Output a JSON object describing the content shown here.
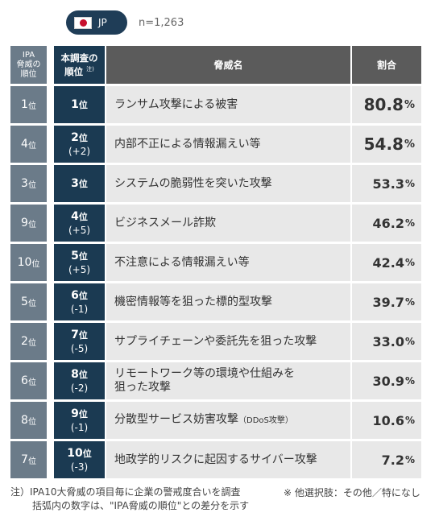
{
  "header": {
    "country_code": "JP",
    "sample_size": "n=1,263"
  },
  "table": {
    "headers": {
      "ipa_rank": [
        "IPA",
        "脅威の",
        "順位"
      ],
      "survey_rank": [
        "本調査の",
        "順位"
      ],
      "survey_rank_note": "注)",
      "threat_name": "脅威名",
      "ratio": "割合"
    },
    "rows": [
      {
        "ipa_rank": "1",
        "survey_rank": "1",
        "diff": "",
        "name": "ランサム攻撃による被害",
        "name_line2": "",
        "name_suffix": "",
        "pct": "80.8",
        "big": true
      },
      {
        "ipa_rank": "4",
        "survey_rank": "2",
        "diff": "(+2)",
        "name": "内部不正による情報漏えい等",
        "name_line2": "",
        "name_suffix": "",
        "pct": "54.8",
        "big": true
      },
      {
        "ipa_rank": "3",
        "survey_rank": "3",
        "diff": "",
        "name": "システムの脆弱性を突いた攻撃",
        "name_line2": "",
        "name_suffix": "",
        "pct": "53.3",
        "big": false
      },
      {
        "ipa_rank": "9",
        "survey_rank": "4",
        "diff": "(+5)",
        "name": "ビジネスメール詐欺",
        "name_line2": "",
        "name_suffix": "",
        "pct": "46.2",
        "big": false
      },
      {
        "ipa_rank": "10",
        "survey_rank": "5",
        "diff": "(+5)",
        "name": "不注意による情報漏えい等",
        "name_line2": "",
        "name_suffix": "",
        "pct": "42.4",
        "big": false
      },
      {
        "ipa_rank": "5",
        "survey_rank": "6",
        "diff": "(-1)",
        "name": "機密情報等を狙った標的型攻撃",
        "name_line2": "",
        "name_suffix": "",
        "pct": "39.7",
        "big": false
      },
      {
        "ipa_rank": "2",
        "survey_rank": "7",
        "diff": "(-5)",
        "name": "サプライチェーンや委託先を狙った攻撃",
        "name_line2": "",
        "name_suffix": "",
        "pct": "33.0",
        "big": false
      },
      {
        "ipa_rank": "6",
        "survey_rank": "8",
        "diff": "(-2)",
        "name": "リモートワーク等の環境や仕組みを",
        "name_line2": "狙った攻撃",
        "name_suffix": "",
        "pct": "30.9",
        "big": false
      },
      {
        "ipa_rank": "8",
        "survey_rank": "9",
        "diff": "(-1)",
        "name": "分散型サービス妨害攻撃",
        "name_line2": "",
        "name_suffix": "（DDoS攻撃）",
        "pct": "10.6",
        "big": false
      },
      {
        "ipa_rank": "7",
        "survey_rank": "10",
        "diff": "(-3)",
        "name": "地政学的リスクに起因するサイバー攻撃",
        "name_line2": "",
        "name_suffix": "",
        "pct": "7.2",
        "big": false
      }
    ],
    "rank_unit": "位",
    "pct_unit": "%"
  },
  "footer": {
    "note_line1": "注）IPA10大脅威の項目毎に企業の警戒度合いを調査",
    "note_line2": "括弧内の数字は、\"IPA脅威の順位\"との差分を示す",
    "others": "※ 他選択肢：その他／特になし"
  },
  "colors": {
    "ipa_column": "#6b7b89",
    "rank_column": "#1b3a52",
    "header_gray": "#5b5b5b",
    "row_background": "#e8e8e8",
    "flag_red": "#c8102e"
  }
}
